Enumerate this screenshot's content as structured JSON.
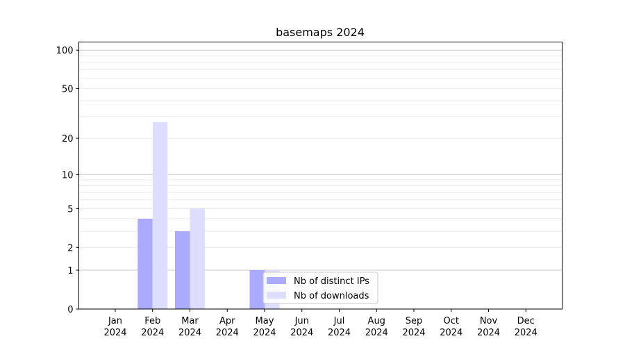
{
  "chart_data": {
    "type": "bar",
    "title": "basemaps 2024",
    "xlabel": "",
    "ylabel": "",
    "yscale": "log(1+y)",
    "ylim": [
      0,
      116
    ],
    "yticks": [
      0,
      1,
      2,
      5,
      10,
      20,
      50,
      100
    ],
    "ytick_labels": [
      "0",
      "1",
      "2",
      "5",
      "10",
      "20",
      "50",
      "100"
    ],
    "grid": true,
    "legend_position": "lower center",
    "categories": [
      "Jan\n2024",
      "Feb\n2024",
      "Mar\n2024",
      "Apr\n2024",
      "May\n2024",
      "Jun\n2024",
      "Jul\n2024",
      "Aug\n2024",
      "Sep\n2024",
      "Oct\n2024",
      "Nov\n2024",
      "Dec\n2024"
    ],
    "series": [
      {
        "name": "Nb of distinct IPs",
        "color": "#aaaaff",
        "values": [
          0,
          4,
          3,
          0,
          1,
          0,
          0,
          0,
          0,
          0,
          0,
          0
        ]
      },
      {
        "name": "Nb of downloads",
        "color": "#ddddff",
        "values": [
          0,
          27,
          5,
          0,
          1,
          0,
          0,
          0,
          0,
          0,
          0,
          0
        ]
      }
    ]
  }
}
